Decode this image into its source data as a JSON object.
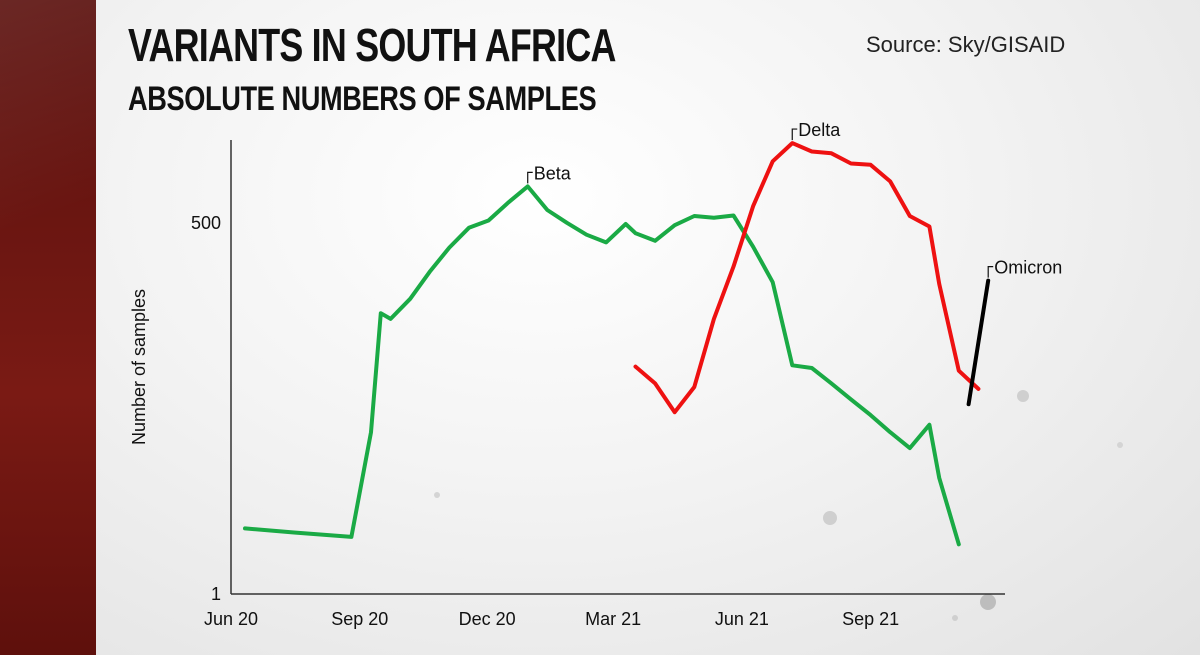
{
  "header": {
    "title": "VARIANTS IN SOUTH AFRICA",
    "subtitle": "ABSOLUTE NUMBERS OF SAMPLES",
    "source": "Source: Sky/GISAID"
  },
  "colors": {
    "background": "#eeeeee",
    "side_band": "#6e1712",
    "beta": "#1aaa45",
    "delta": "#ee1111",
    "omicron": "#000000",
    "axis": "#333333"
  },
  "chart_data": {
    "type": "line",
    "title": "VARIANTS IN SOUTH AFRICA",
    "subtitle": "ABSOLUTE NUMBERS OF SAMPLES",
    "xlabel": "",
    "ylabel": "Number of samples",
    "y_scale": "log",
    "ylim": [
      1,
      2000
    ],
    "x_tick_labels": [
      "Jun 20",
      "Sep 20",
      "Dec 20",
      "Mar 21",
      "Jun 21",
      "Sep 21"
    ],
    "x_ticks": [
      "2020-06-01",
      "2020-09-01",
      "2020-12-01",
      "2021-03-01",
      "2021-06-01",
      "2021-09-01"
    ],
    "xlim": [
      "2020-06-01",
      "2021-12-06"
    ],
    "y_ticks": [
      1,
      500
    ],
    "y_tick_labels": [
      "1",
      "500"
    ],
    "grid": false,
    "legend": "direct labels",
    "series": [
      {
        "name": "Beta",
        "color": "#1aaa45",
        "x": [
          "2020-06-11",
          "2020-07-16",
          "2020-08-26",
          "2020-09-09",
          "2020-09-16",
          "2020-09-23",
          "2020-10-07",
          "2020-10-21",
          "2020-11-04",
          "2020-11-18",
          "2020-12-02",
          "2020-12-16",
          "2020-12-30",
          "2021-01-13",
          "2021-01-27",
          "2021-02-10",
          "2021-02-24",
          "2021-03-10",
          "2021-03-17",
          "2021-03-31",
          "2021-04-14",
          "2021-04-28",
          "2021-05-12",
          "2021-05-26",
          "2021-06-09",
          "2021-06-23",
          "2021-07-07",
          "2021-07-21",
          "2021-08-04",
          "2021-08-18",
          "2021-09-01",
          "2021-09-15",
          "2021-09-29",
          "2021-10-13",
          "2021-10-20",
          "2021-11-03"
        ],
        "y": [
          3,
          2.8,
          2.6,
          15,
          110,
          100,
          140,
          220,
          330,
          460,
          520,
          700,
          920,
          620,
          500,
          410,
          360,
          490,
          420,
          370,
          480,
          560,
          545,
          565,
          335,
          185,
          46,
          44,
          34,
          26,
          20,
          15,
          11.5,
          17,
          7,
          2.3
        ]
      },
      {
        "name": "Delta",
        "color": "#ee1111",
        "x": [
          "2021-03-17",
          "2021-03-31",
          "2021-04-14",
          "2021-04-28",
          "2021-05-12",
          "2021-05-26",
          "2021-06-09",
          "2021-06-23",
          "2021-07-07",
          "2021-07-21",
          "2021-08-04",
          "2021-08-18",
          "2021-09-01",
          "2021-09-15",
          "2021-09-29",
          "2021-10-13",
          "2021-10-20",
          "2021-11-03",
          "2021-11-17"
        ],
        "y": [
          45,
          34,
          21,
          32,
          100,
          240,
          660,
          1400,
          1900,
          1650,
          1600,
          1350,
          1320,
          1000,
          560,
          470,
          180,
          42,
          31
        ]
      },
      {
        "name": "Omicron",
        "color": "#000000",
        "x": [
          "2021-11-10",
          "2021-11-24"
        ],
        "y": [
          24,
          190
        ]
      }
    ]
  }
}
